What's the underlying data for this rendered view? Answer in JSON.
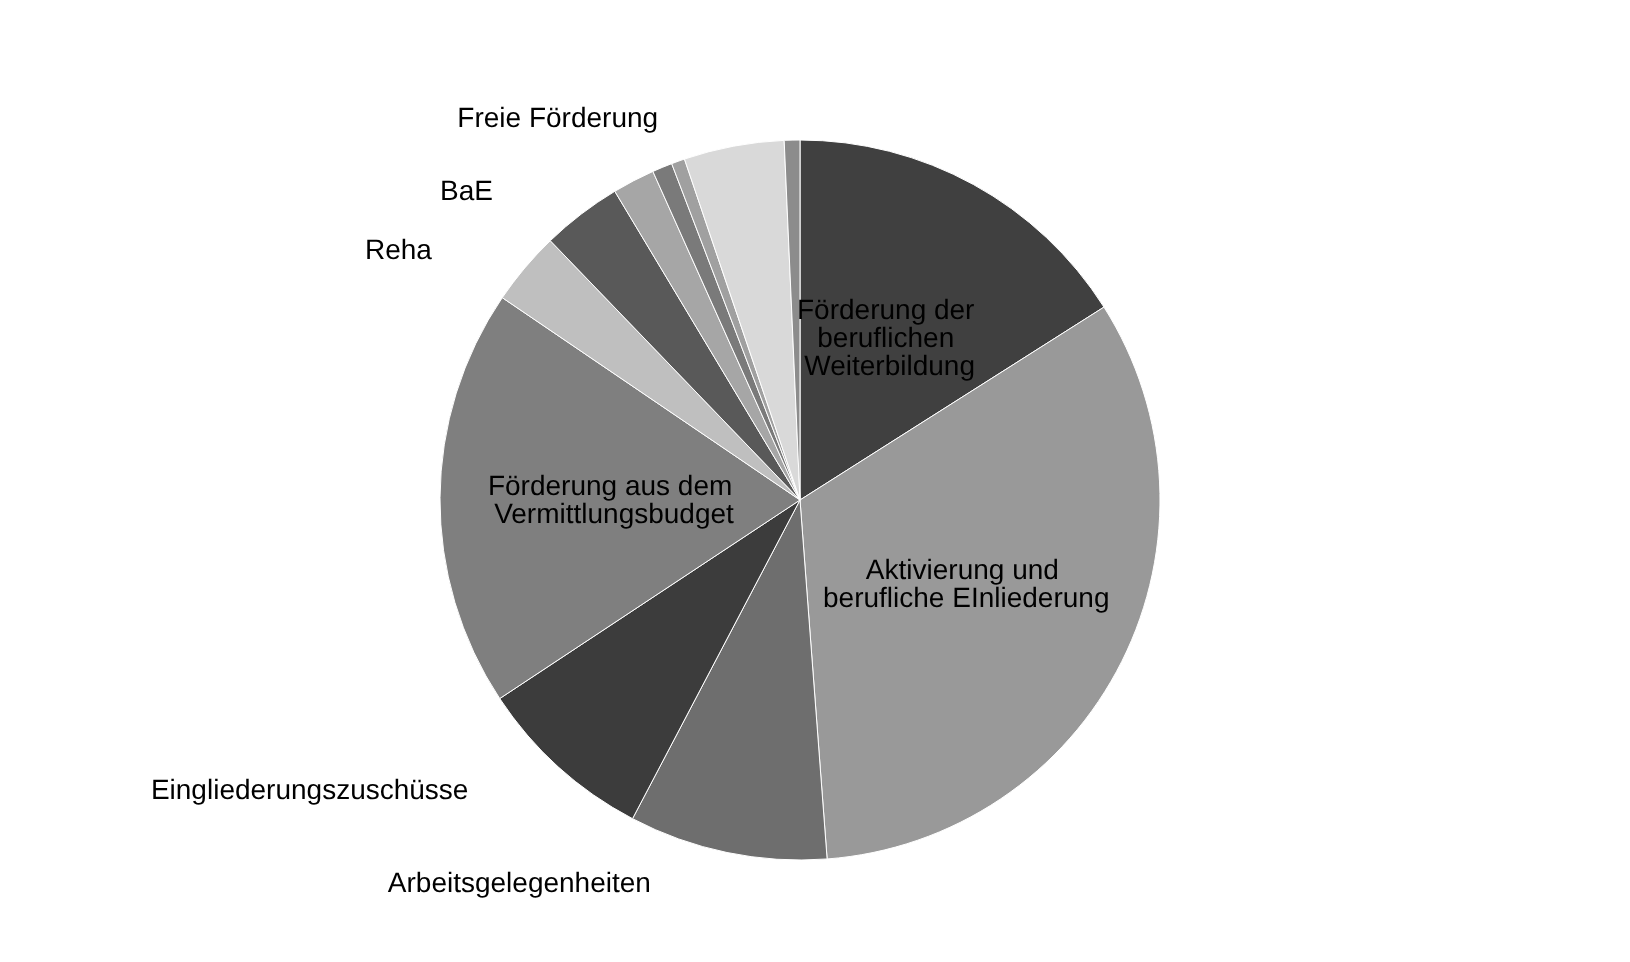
{
  "chart_data": {
    "type": "pie",
    "categories": [
      "Förderung der beruflichen Weiterbildung",
      "Aktivierung und berufliche EInliederung",
      "Arbeitsgelegenheiten",
      "Eingliederungszuschüsse",
      "Förderung aus dem Vermittlungsbudget",
      "Reha",
      "BaE",
      null,
      null,
      null,
      "Freie Förderung",
      null
    ],
    "values": [
      16,
      32.8,
      8.9,
      8,
      18.8,
      3.3,
      3.6,
      1.9,
      0.9,
      0.6,
      4.5,
      0.7
    ],
    "colors": [
      "#404040",
      "#999999",
      "#6e6e6e",
      "#3c3c3c",
      "#7f7f7f",
      "#bfbfbf",
      "#595959",
      "#a6a6a6",
      "#7a7a7a",
      "#a0a0a0",
      "#d9d9d9",
      "#8c8c8c"
    ],
    "legend": false
  }
}
